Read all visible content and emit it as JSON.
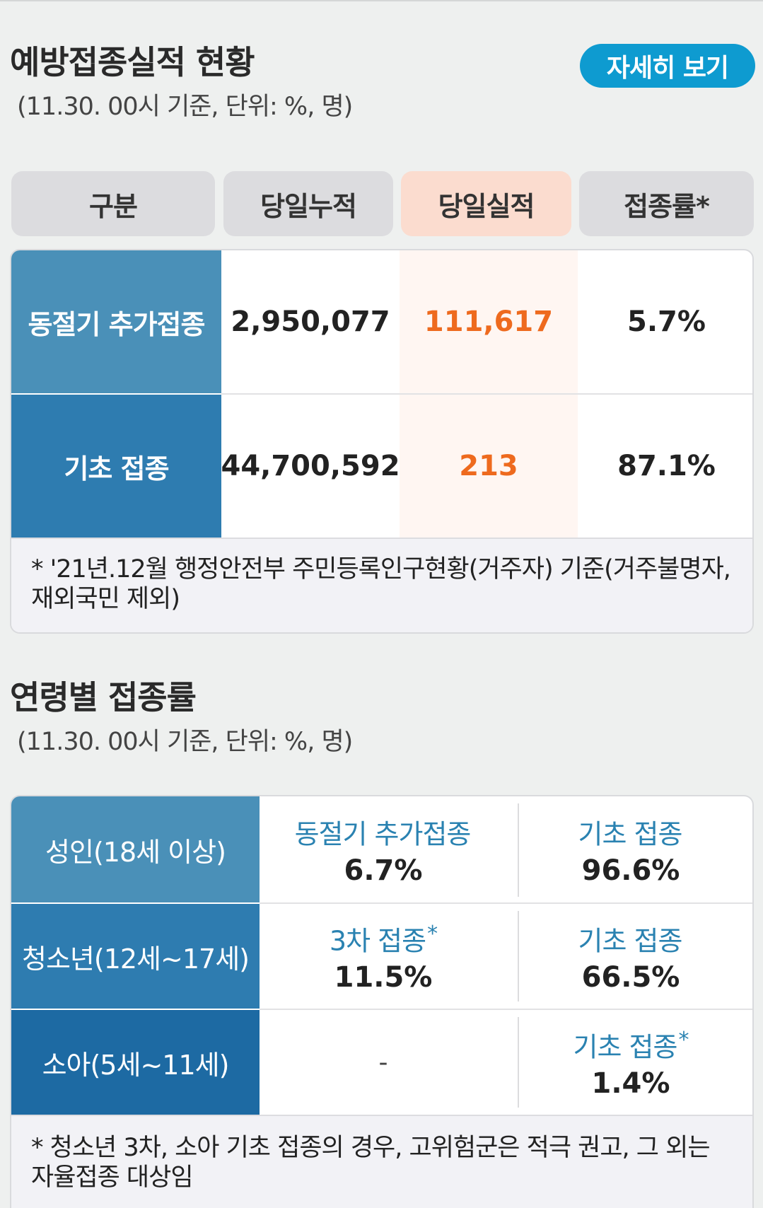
{
  "section1": {
    "title": "예방접종실적 현황",
    "subtitle": "(11.30. 00시 기준, 단위: %, 명)",
    "detail_button": "자세히 보기",
    "columns": [
      "구분",
      "당일누적",
      "당일실적",
      "접종률*"
    ],
    "rows": [
      {
        "label": "동절기 추가접종",
        "cumulative": "2,950,077",
        "today": "111,617",
        "rate": "5.7%"
      },
      {
        "label": "기초 접종",
        "cumulative": "44,700,592",
        "today": "213",
        "rate": "87.1%"
      }
    ],
    "note": "* '21년.12월 행정안전부 주민등록인구현황(거주자) 기준(거주불명자, 재외국민 제외)"
  },
  "section2": {
    "title": "연령별 접종률",
    "subtitle": "(11.30. 00시 기준, 단위: %, 명)",
    "rows": [
      {
        "label": "성인(18세 이상)",
        "c1_name": "동절기 추가접종",
        "c1_star": "",
        "c1_value": "6.7%",
        "c2_name": "기초 접종",
        "c2_star": "",
        "c2_value": "96.6%"
      },
      {
        "label": "청소년(12세~17세)",
        "c1_name": "3차 접종",
        "c1_star": "*",
        "c1_value": "11.5%",
        "c2_name": "기초 접종",
        "c2_star": "",
        "c2_value": "66.5%"
      },
      {
        "label": "소아(5세~11세)",
        "c1_name": "",
        "c1_star": "",
        "c1_value": "-",
        "c2_name": "기초 접종",
        "c2_star": "*",
        "c2_value": "1.4%"
      }
    ],
    "note": "* 청소년 3차, 소아 기초 접종의 경우, 고위험군은 적극 권고, 그 외는 자율접종 대상임"
  },
  "colors": {
    "button": "#0e9bd0",
    "row1": "#4a90b8",
    "row2": "#2e7cb0",
    "row3": "#1d6aa3",
    "today_text": "#ee6a1e",
    "label_blue": "#2a82b1"
  }
}
